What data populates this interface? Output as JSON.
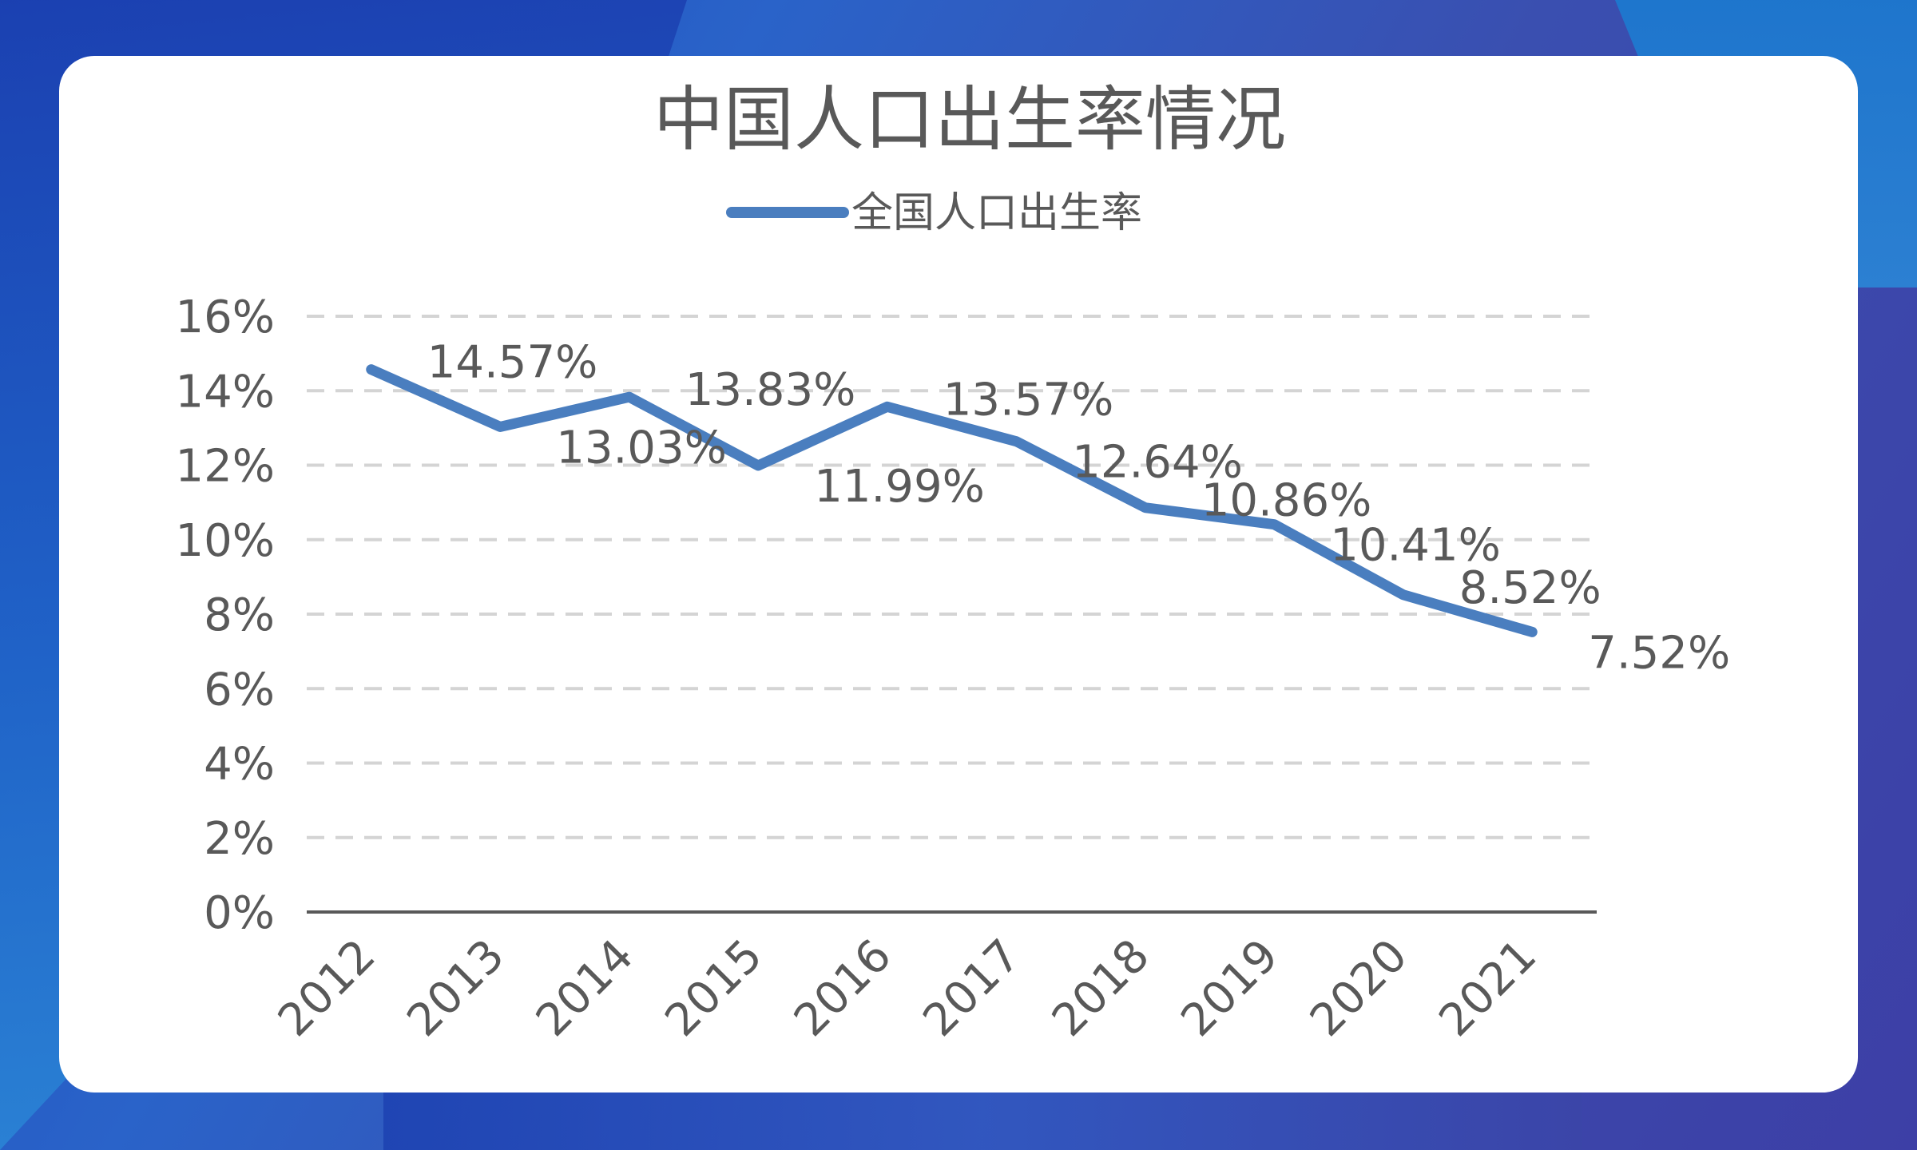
{
  "chart_data": {
    "type": "line",
    "title": "中国人口出生率情况",
    "categories": [
      "2012",
      "2013",
      "2014",
      "2015",
      "2016",
      "2017",
      "2018",
      "2019",
      "2020",
      "2021"
    ],
    "series": [
      {
        "name": "全国人口出生率",
        "values": [
          14.57,
          13.03,
          13.83,
          11.99,
          13.57,
          12.64,
          10.86,
          10.41,
          8.52,
          7.52
        ],
        "labels": [
          "14.57%",
          "13.03%",
          "13.83%",
          "11.99%",
          "13.57%",
          "12.64%",
          "10.86%",
          "10.41%",
          "8.52%",
          "7.52%"
        ],
        "color": "#4a7ebf"
      }
    ],
    "ylim": [
      0,
      16
    ],
    "yticks": [
      0,
      2,
      4,
      6,
      8,
      10,
      12,
      14,
      16
    ],
    "ytick_labels": [
      "0%",
      "2%",
      "4%",
      "6%",
      "8%",
      "10%",
      "12%",
      "14%",
      "16%"
    ],
    "xlabel": "",
    "ylabel": "",
    "grid": true,
    "legend_position": "top"
  },
  "colors": {
    "line": "#4a7ebf",
    "grid": "#d4d4d4",
    "text": "#595959",
    "axis": "#595959"
  }
}
